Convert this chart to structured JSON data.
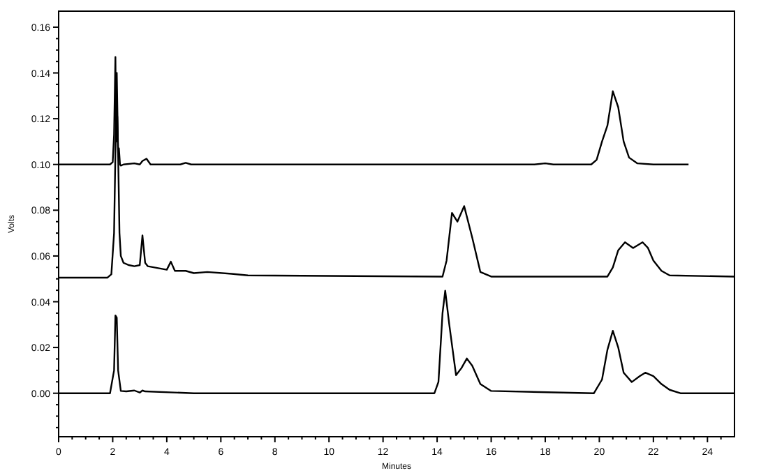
{
  "chart_data": {
    "type": "line",
    "xlabel": "Minutes",
    "ylabel": "Volts",
    "xlim": [
      0,
      25
    ],
    "ylim": [
      -0.019,
      0.167
    ],
    "xticks": [
      0,
      {
        "value": 0.5,
        "label": null
      },
      {
        "value": 1,
        "label": null
      },
      {
        "value": 1.5,
        "label": null
      },
      2,
      {
        "value": 2.5,
        "label": null
      },
      {
        "value": 3,
        "label": null
      },
      {
        "value": 3.5,
        "label": null
      },
      4,
      {
        "value": 4.5,
        "label": null
      },
      {
        "value": 5,
        "label": null
      },
      {
        "value": 5.5,
        "label": null
      },
      6,
      {
        "value": 6.5,
        "label": null
      },
      {
        "value": 7,
        "label": null
      },
      {
        "value": 7.5,
        "label": null
      },
      8,
      {
        "value": 8.5,
        "label": null
      },
      {
        "value": 9,
        "label": null
      },
      {
        "value": 9.5,
        "label": null
      },
      10,
      {
        "value": 10.5,
        "label": null
      },
      {
        "value": 11,
        "label": null
      },
      {
        "value": 11.5,
        "label": null
      },
      12,
      {
        "value": 12.5,
        "label": null
      },
      {
        "value": 13,
        "label": null
      },
      {
        "value": 13.5,
        "label": null
      },
      14,
      {
        "value": 14.5,
        "label": null
      },
      {
        "value": 15,
        "label": null
      },
      {
        "value": 15.5,
        "label": null
      },
      16,
      {
        "value": 16.5,
        "label": null
      },
      {
        "value": 17,
        "label": null
      },
      {
        "value": 17.5,
        "label": null
      },
      18,
      {
        "value": 18.5,
        "label": null
      },
      {
        "value": 19,
        "label": null
      },
      {
        "value": 19.5,
        "label": null
      },
      20,
      {
        "value": 20.5,
        "label": null
      },
      {
        "value": 21,
        "label": null
      },
      {
        "value": 21.5,
        "label": null
      },
      22,
      {
        "value": 22.5,
        "label": null
      },
      {
        "value": 23,
        "label": null
      },
      {
        "value": 23.5,
        "label": null
      },
      24,
      {
        "value": 24.5,
        "label": null
      }
    ],
    "yticks": [
      {
        "value": -0.015,
        "label": null
      },
      {
        "value": -0.01,
        "label": null
      },
      {
        "value": -0.005,
        "label": null
      },
      {
        "value": 0,
        "label": "0.00"
      },
      {
        "value": 0.005,
        "label": null
      },
      {
        "value": 0.01,
        "label": null
      },
      {
        "value": 0.015,
        "label": null
      },
      {
        "value": 0.02,
        "label": "0.02"
      },
      {
        "value": 0.025,
        "label": null
      },
      {
        "value": 0.03,
        "label": null
      },
      {
        "value": 0.035,
        "label": null
      },
      {
        "value": 0.04,
        "label": "0.04"
      },
      {
        "value": 0.045,
        "label": null
      },
      {
        "value": 0.05,
        "label": null
      },
      {
        "value": 0.055,
        "label": null
      },
      {
        "value": 0.06,
        "label": "0.06"
      },
      {
        "value": 0.065,
        "label": null
      },
      {
        "value": 0.07,
        "label": null
      },
      {
        "value": 0.075,
        "label": null
      },
      {
        "value": 0.08,
        "label": "0.08"
      },
      {
        "value": 0.085,
        "label": null
      },
      {
        "value": 0.09,
        "label": null
      },
      {
        "value": 0.095,
        "label": null
      },
      {
        "value": 0.1,
        "label": "0.10"
      },
      {
        "value": 0.105,
        "label": null
      },
      {
        "value": 0.11,
        "label": null
      },
      {
        "value": 0.115,
        "label": null
      },
      {
        "value": 0.12,
        "label": "0.12"
      },
      {
        "value": 0.125,
        "label": null
      },
      {
        "value": 0.13,
        "label": null
      },
      {
        "value": 0.135,
        "label": null
      },
      {
        "value": 0.14,
        "label": "0.14"
      },
      {
        "value": 0.145,
        "label": null
      },
      {
        "value": 0.15,
        "label": null
      },
      {
        "value": 0.155,
        "label": null
      },
      {
        "value": 0.16,
        "label": "0.16"
      }
    ],
    "grid": false,
    "marker": "none",
    "line_style": "solid",
    "series": [
      {
        "color": "#000000",
        "x": [
          0,
          1.9,
          2.0,
          2.05,
          2.1,
          2.13,
          2.17,
          2.2,
          2.23,
          2.27,
          2.3,
          2.4,
          2.8,
          3.0,
          3.1,
          3.25,
          3.4,
          4.5,
          4.7,
          4.9,
          17.6,
          18.0,
          18.3,
          19.7,
          19.9,
          20.1,
          20.3,
          20.5,
          20.7,
          20.9,
          21.1,
          21.4,
          22,
          23.3
        ],
        "values": [
          0.1,
          0.1,
          0.101,
          0.113,
          0.147,
          0.11,
          0.121,
          0.105,
          0.107,
          0.1,
          0.0995,
          0.1,
          0.1005,
          0.1,
          0.1015,
          0.1025,
          0.1,
          0.1,
          0.1007,
          0.1,
          0.1,
          0.1005,
          0.1,
          0.1,
          0.102,
          0.11,
          0.117,
          0.132,
          0.125,
          0.11,
          0.103,
          0.1005,
          0.1,
          0.1
        ]
      },
      {
        "color": "#000000",
        "x": [
          0,
          1.8,
          1.95,
          2.05,
          2.15,
          2.25,
          2.3,
          2.4,
          2.6,
          2.8,
          3.0,
          3.1,
          3.2,
          3.3,
          4.0,
          4.15,
          4.3,
          4.7,
          5.0,
          5.5,
          6.4,
          7.0,
          14.2,
          14.35,
          14.55,
          14.75,
          15.0,
          15.3,
          15.6,
          16.0,
          20.3,
          20.5,
          20.7,
          20.95,
          21.25,
          21.6,
          21.8,
          22.0,
          22.3,
          22.6,
          25
        ],
        "values": [
          0.0505,
          0.0505,
          0.052,
          0.07,
          0.14,
          0.07,
          0.06,
          0.057,
          0.056,
          0.0555,
          0.056,
          0.069,
          0.057,
          0.0555,
          0.054,
          0.0575,
          0.0535,
          0.0535,
          0.0525,
          0.053,
          0.0522,
          0.0515,
          0.051,
          0.058,
          0.0788,
          0.075,
          0.0818,
          0.068,
          0.053,
          0.051,
          0.051,
          0.055,
          0.0625,
          0.066,
          0.0635,
          0.066,
          0.0635,
          0.058,
          0.0535,
          0.0515,
          0.051
        ]
      },
      {
        "color": "#000000",
        "x": [
          0,
          1.9,
          2.05,
          2.1,
          2.15,
          2.2,
          2.3,
          2.5,
          2.8,
          3.0,
          3.1,
          3.2,
          5.0,
          13.9,
          14.05,
          14.2,
          14.3,
          14.45,
          14.7,
          14.9,
          15.1,
          15.3,
          15.6,
          16.0,
          19.8,
          20.1,
          20.3,
          20.5,
          20.7,
          20.9,
          21.2,
          21.5,
          21.7,
          22.0,
          22.3,
          22.6,
          23.0,
          25
        ],
        "values": [
          0,
          0,
          0.01,
          0.034,
          0.033,
          0.01,
          0.001,
          0.0008,
          0.0012,
          0.0003,
          0.0012,
          0.0008,
          0,
          0,
          0.005,
          0.035,
          0.0448,
          0.03,
          0.0079,
          0.011,
          0.0152,
          0.012,
          0.004,
          0.001,
          0,
          0.006,
          0.019,
          0.0273,
          0.02,
          0.009,
          0.0049,
          0.0075,
          0.009,
          0.0075,
          0.004,
          0.0015,
          0,
          0
        ]
      }
    ]
  }
}
